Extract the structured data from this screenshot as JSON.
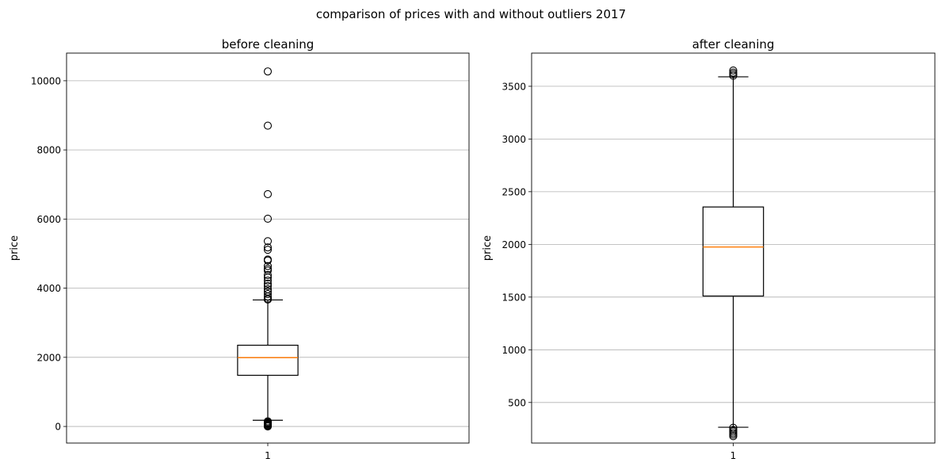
{
  "figure": {
    "title": "comparison of prices with and without outliers 2017"
  },
  "chart_data": [
    {
      "type": "box",
      "title": "before cleaning",
      "xlabel": "",
      "ylabel": "price",
      "categories": [
        "1"
      ],
      "ylim": [
        -480,
        10800
      ],
      "yticks": [
        0,
        2000,
        4000,
        6000,
        8000,
        10000
      ],
      "grid": "y",
      "box": {
        "whisker_low": 180,
        "q1": 1480,
        "median": 1990,
        "q3": 2350,
        "whisker_high": 3660
      },
      "outliers": [
        10270,
        8700,
        6720,
        6010,
        5360,
        5180,
        5110,
        4830,
        4800,
        4640,
        4560,
        4510,
        4380,
        4310,
        4220,
        4130,
        4060,
        3970,
        3900,
        3830,
        3760,
        3700,
        3670,
        150,
        120,
        100,
        80,
        60,
        40,
        20,
        0
      ]
    },
    {
      "type": "box",
      "title": "after cleaning",
      "xlabel": "",
      "ylabel": "price",
      "categories": [
        "1"
      ],
      "ylim": [
        115,
        3815
      ],
      "yticks": [
        500,
        1000,
        1500,
        2000,
        2500,
        3000,
        3500
      ],
      "grid": "y",
      "box": {
        "whisker_low": 265,
        "q1": 1510,
        "median": 1975,
        "q3": 2355,
        "whisker_high": 3590
      },
      "outliers": [
        3650,
        3630,
        3615,
        3600,
        260,
        240,
        225,
        210,
        195,
        180
      ]
    }
  ],
  "colors": {
    "box": "#000000",
    "median": "#ff7f0e",
    "grid": "#b0b0b0"
  }
}
